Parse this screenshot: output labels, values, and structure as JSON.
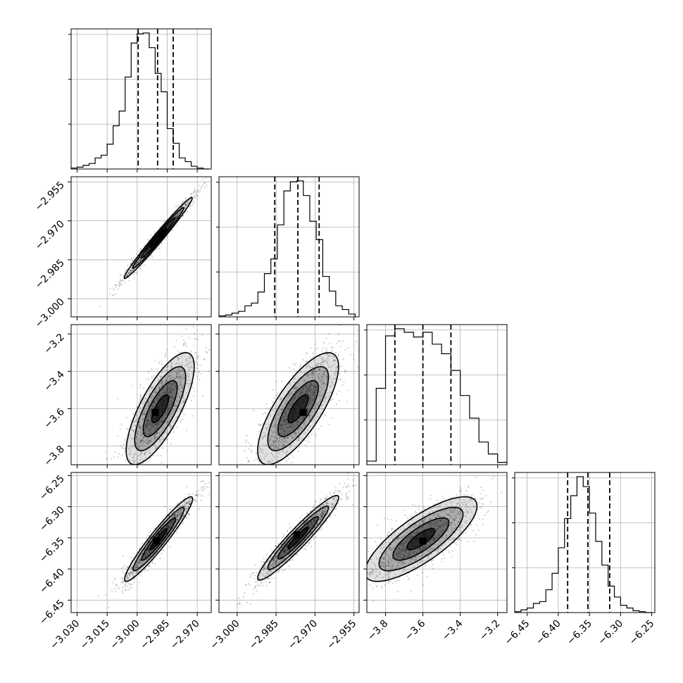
{
  "chart_data": {
    "type": "corner",
    "grid": true,
    "n_params": 4,
    "params": [
      {
        "range": [
          -3.033,
          -2.963
        ],
        "ticks": [
          -3.03,
          -3.015,
          -3.0,
          -2.985,
          -2.97
        ],
        "tick_labels": [
          "−3.030",
          "−3.015",
          "−3.000",
          "−2.985",
          "−2.970"
        ],
        "quantiles": [
          -2.9995,
          -2.9898,
          -2.982
        ],
        "hist_bins": [
          -3.033,
          -3.03,
          -3.027,
          -3.024,
          -3.021,
          -3.018,
          -3.015,
          -3.012,
          -3.009,
          -3.006,
          -3.003,
          -3.0,
          -2.997,
          -2.994,
          -2.991,
          -2.988,
          -2.985,
          -2.982,
          -2.979,
          -2.976,
          -2.973,
          -2.97,
          -2.967,
          -2.964
        ],
        "hist_counts": [
          1,
          2,
          4,
          6,
          12,
          15,
          27,
          47,
          63,
          100,
          137,
          147,
          148,
          132,
          104,
          84,
          44,
          28,
          12,
          8,
          3,
          1,
          0
        ]
      },
      {
        "range": [
          -3.007,
          -2.953
        ],
        "ticks": [
          -3.0,
          -2.985,
          -2.97,
          -2.955
        ],
        "tick_labels": [
          "−3.000",
          "−2.985",
          "−2.970",
          "−2.955"
        ],
        "quantiles": [
          -2.9855,
          -2.9766,
          -2.9684
        ],
        "hist_bins": [
          -3.007,
          -3.0045,
          -3.002,
          -2.9995,
          -2.997,
          -2.9945,
          -2.992,
          -2.9895,
          -2.987,
          -2.9845,
          -2.982,
          -2.9795,
          -2.977,
          -2.9745,
          -2.972,
          -2.9695,
          -2.967,
          -2.9645,
          -2.962,
          -2.9595,
          -2.957,
          -2.9545
        ],
        "hist_counts": [
          1,
          2,
          4,
          6,
          12,
          15,
          27,
          47,
          63,
          100,
          137,
          147,
          148,
          132,
          104,
          84,
          44,
          28,
          12,
          8,
          3
        ]
      },
      {
        "range": [
          -3.9,
          -3.15
        ],
        "ticks": [
          -3.8,
          -3.6,
          -3.4,
          -3.2
        ],
        "tick_labels": [
          "−3.8",
          "−3.6",
          "−3.4",
          "−3.2"
        ],
        "quantiles": [
          -3.75,
          -3.6,
          -3.45
        ],
        "hist_bins": [
          -3.9,
          -3.85,
          -3.8,
          -3.75,
          -3.7,
          -3.65,
          -3.6,
          -3.55,
          -3.5,
          -3.45,
          -3.4,
          -3.35,
          -3.3,
          -3.25,
          -3.2,
          -3.15
        ],
        "hist_counts": [
          3,
          64,
          108,
          114,
          111,
          107,
          111,
          101,
          93,
          79,
          58,
          39,
          19,
          9,
          2
        ]
      },
      {
        "range": [
          -6.47,
          -6.245
        ],
        "ticks": [
          -6.45,
          -6.4,
          -6.35,
          -6.3,
          -6.25
        ],
        "tick_labels": [
          "−6.45",
          "−6.40",
          "−6.35",
          "−6.30",
          "−6.25"
        ],
        "quantiles": [
          -6.385,
          -6.3525,
          -6.3175
        ],
        "hist_bins": [
          -6.47,
          -6.46,
          -6.45,
          -6.44,
          -6.43,
          -6.42,
          -6.41,
          -6.4,
          -6.39,
          -6.38,
          -6.37,
          -6.36,
          -6.35,
          -6.34,
          -6.33,
          -6.32,
          -6.31,
          -6.3,
          -6.29,
          -6.28,
          -6.27,
          -6.26,
          -6.25
        ],
        "hist_counts": [
          1,
          3,
          5,
          10,
          12,
          25,
          43,
          71,
          103,
          128,
          149,
          138,
          109,
          78,
          52,
          29,
          17,
          8,
          5,
          2,
          1,
          0
        ]
      }
    ],
    "pairs": [
      {
        "row": 1,
        "col": 0,
        "mean": [
          -2.9895,
          -2.9766
        ],
        "sx": 0.0085,
        "sy": 0.0078,
        "rho": 0.985,
        "peak": [
          -2.988,
          -2.975
        ]
      },
      {
        "row": 2,
        "col": 0,
        "mean": [
          -2.9885,
          -3.6
        ],
        "sx": 0.0085,
        "sy": 0.15,
        "rho": 0.75,
        "peak": [
          -2.991,
          -3.62
        ]
      },
      {
        "row": 2,
        "col": 1,
        "mean": [
          -2.9765,
          -3.6
        ],
        "sx": 0.0078,
        "sy": 0.15,
        "rho": 0.75,
        "peak": [
          -2.9745,
          -3.62
        ]
      },
      {
        "row": 3,
        "col": 0,
        "mean": [
          -2.9893,
          -6.352
        ],
        "sx": 0.0085,
        "sy": 0.034,
        "rho": 0.95,
        "peak": [
          -2.9905,
          -6.355
        ]
      },
      {
        "row": 3,
        "col": 1,
        "mean": [
          -2.9765,
          -6.35
        ],
        "sx": 0.0078,
        "sy": 0.034,
        "rho": 0.95,
        "peak": [
          -2.977,
          -6.345
        ]
      },
      {
        "row": 3,
        "col": 2,
        "mean": [
          -3.61,
          -6.352
        ],
        "sx": 0.15,
        "sy": 0.034,
        "rho": 0.78,
        "peak": [
          -3.6,
          -6.355
        ]
      }
    ]
  }
}
